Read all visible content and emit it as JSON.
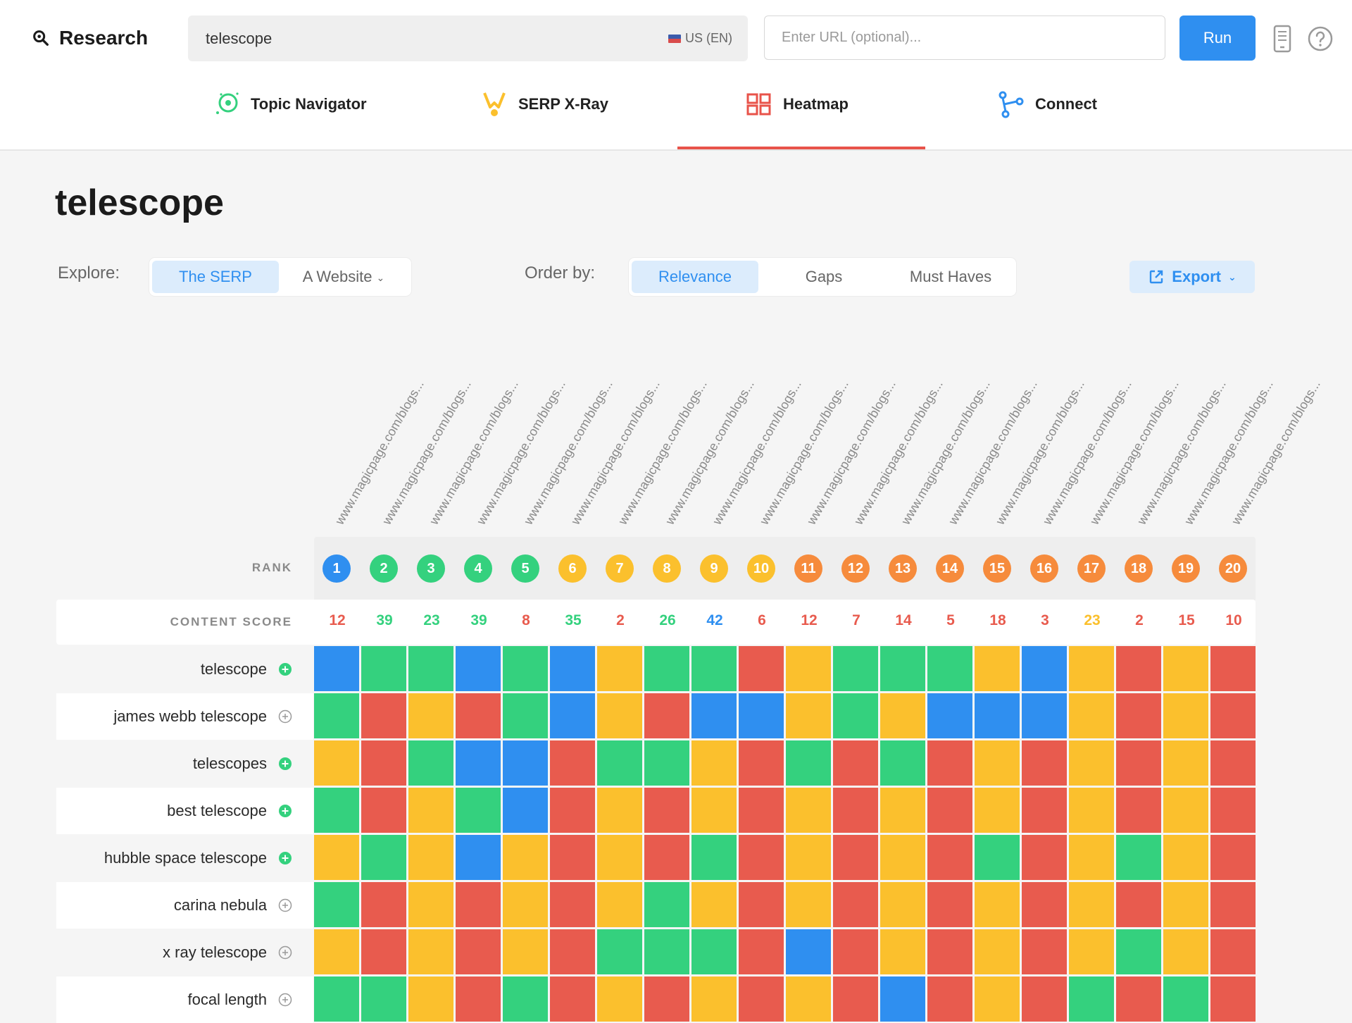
{
  "brand": {
    "label": "Research",
    "icon": "search-icon"
  },
  "search": {
    "value": "telescope",
    "locale": "US (EN)"
  },
  "url_input": {
    "placeholder": "Enter URL (optional)..."
  },
  "run_label": "Run",
  "tabs": [
    {
      "label": "Topic Navigator",
      "icon": "compass-icon",
      "active": false
    },
    {
      "label": "SERP X-Ray",
      "icon": "xray-icon",
      "active": false
    },
    {
      "label": "Heatmap",
      "icon": "grid-icon",
      "active": true
    },
    {
      "label": "Connect",
      "icon": "branch-icon",
      "active": false
    }
  ],
  "page_title": "telescope",
  "explore": {
    "label": "Explore:",
    "options": [
      "The SERP",
      "A Website"
    ],
    "active": "The SERP"
  },
  "order_by": {
    "label": "Order by:",
    "options": [
      "Relevance",
      "Gaps",
      "Must Haves"
    ],
    "active": "Relevance"
  },
  "export_label": "Export",
  "heatmap": {
    "column_header_text": "www.magicpage.com/blogs...",
    "rank_label": "RANK",
    "content_score_label": "CONTENT SCORE",
    "ranks": [
      1,
      2,
      3,
      4,
      5,
      6,
      7,
      8,
      9,
      10,
      11,
      12,
      13,
      14,
      15,
      16,
      17,
      18,
      19,
      20
    ],
    "rank_colors": [
      "blue",
      "green",
      "green",
      "green",
      "green",
      "yellow",
      "yellow",
      "yellow",
      "yellow",
      "yellow",
      "orange",
      "orange",
      "orange",
      "orange",
      "orange",
      "orange",
      "orange",
      "orange",
      "orange",
      "orange"
    ],
    "content_scores": [
      12,
      39,
      23,
      39,
      8,
      35,
      2,
      26,
      42,
      6,
      12,
      7,
      14,
      5,
      18,
      3,
      23,
      2,
      15,
      10
    ],
    "score_colors": [
      "red",
      "green",
      "green",
      "green",
      "red",
      "green",
      "red",
      "green",
      "blue",
      "red",
      "red",
      "red",
      "red",
      "red",
      "red",
      "red",
      "yellow",
      "red",
      "red",
      "red"
    ],
    "keywords": [
      {
        "label": "telescope",
        "icon": "plus-filled-icon",
        "cells": "BGGBGBYGGRYGGGYBYRYR"
      },
      {
        "label": "james webb telescope",
        "icon": "plus-outline-icon",
        "cells": "GRYRGBYRBBYGYBBBYRYR"
      },
      {
        "label": "telescopes",
        "icon": "plus-filled-icon",
        "cells": "YRGBBRGGYRGRGRYRYRYR"
      },
      {
        "label": "best telescope",
        "icon": "plus-filled-icon",
        "cells": "GRYGBRYRYRYRYRYRYRYR"
      },
      {
        "label": "hubble space telescope",
        "icon": "plus-filled-icon",
        "cells": "YGYBYRYRGRYRYRGRYGYR"
      },
      {
        "label": "carina nebula",
        "icon": "plus-outline-icon",
        "cells": "GRYRYRYGYRYRYRYRYRYR"
      },
      {
        "label": "x ray telescope",
        "icon": "plus-outline-icon",
        "cells": "YRYRYRGGGRBRYRYRYGYR"
      },
      {
        "label": "focal length",
        "icon": "plus-outline-icon",
        "cells": "GGYRGRYRYRYRBRYRGRGR"
      }
    ]
  },
  "colors": {
    "blue": "#2f8ff0",
    "green": "#34d17e",
    "yellow": "#fbc02d",
    "orange": "#f68b3c",
    "red": "#e85b4e",
    "accent": "#2f8ff0",
    "tab_underline": "#e8534a"
  }
}
